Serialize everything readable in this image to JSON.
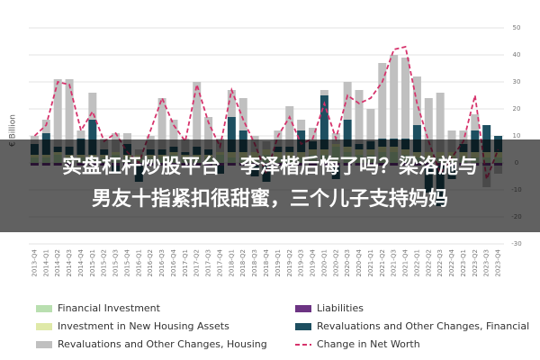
{
  "chart_data": {
    "type": "bar",
    "stacked": true,
    "y_label": "€ Billion",
    "categories": [
      "2013-Q4",
      "2014-Q1",
      "2014-Q2",
      "2014-Q3",
      "2014-Q4",
      "2015-Q1",
      "2015-Q2",
      "2015-Q3",
      "2015-Q4",
      "2016-Q1",
      "2016-Q2",
      "2016-Q3",
      "2016-Q4",
      "2017-Q1",
      "2017-Q2",
      "2017-Q3",
      "2017-Q4",
      "2018-Q1",
      "2018-Q2",
      "2018-Q3",
      "2018-Q4",
      "2019-Q1",
      "2019-Q2",
      "2019-Q3",
      "2019-Q4",
      "2020-Q1",
      "2020-Q2",
      "2020-Q3",
      "2020-Q4",
      "2021-Q1",
      "2021-Q2",
      "2021-Q3",
      "2021-Q4",
      "2022-Q1",
      "2022-Q2",
      "2022-Q3",
      "2022-Q4",
      "2023-Q1",
      "2023-Q2",
      "2023-Q3",
      "2023-Q4"
    ],
    "series": [
      {
        "name": "Financial Investment",
        "type": "bar",
        "color": "#b9dfb0",
        "values": [
          2,
          2,
          3,
          2,
          2,
          2,
          2,
          3,
          2,
          2,
          2,
          2,
          3,
          2,
          2,
          2,
          3,
          2,
          2,
          2,
          3,
          2,
          2,
          2,
          3,
          3,
          6,
          4,
          3,
          3,
          4,
          4,
          3,
          2,
          2,
          2,
          2,
          2,
          2,
          2,
          2
        ]
      },
      {
        "name": "Liabilities",
        "type": "bar",
        "color": "#6c3483",
        "values": [
          -1,
          -1,
          -1,
          -1,
          -1,
          -1,
          -1,
          -1,
          -1,
          -1,
          -1,
          -1,
          -1,
          -1,
          -1,
          -1,
          -1,
          -1,
          -1,
          -1,
          -1,
          -1,
          -1,
          -1,
          -1,
          -1,
          -1,
          -1,
          -1,
          -1,
          -1,
          -1,
          -1,
          -1,
          -1,
          -1,
          -1,
          -1,
          -1,
          -1,
          -1
        ]
      },
      {
        "name": "Investment in New Housing Assets",
        "type": "bar",
        "color": "#dfe9a8",
        "values": [
          1,
          1,
          1,
          1,
          1,
          1,
          1,
          1,
          1,
          1,
          1,
          1,
          1,
          1,
          1,
          1,
          1,
          2,
          2,
          2,
          2,
          2,
          2,
          2,
          2,
          2,
          1,
          2,
          2,
          2,
          2,
          2,
          2,
          2,
          2,
          2,
          2,
          2,
          2,
          2,
          2
        ]
      },
      {
        "name": "Revaluations and Other Changes, Financial",
        "type": "bar",
        "color": "#1d4f60",
        "values": [
          4,
          8,
          2,
          3,
          6,
          13,
          2,
          -3,
          4,
          -6,
          2,
          2,
          2,
          1,
          3,
          2,
          -3,
          13,
          8,
          -4,
          -6,
          2,
          2,
          8,
          3,
          20,
          -5,
          10,
          2,
          3,
          3,
          3,
          4,
          10,
          -10,
          -15,
          -5,
          3,
          8,
          10,
          6
        ]
      },
      {
        "name": "Revaluations and Other Changes, Housing",
        "type": "bar",
        "color": "#c0c0c0",
        "values": [
          3,
          5,
          25,
          25,
          3,
          10,
          4,
          7,
          4,
          2,
          5,
          19,
          10,
          5,
          24,
          12,
          5,
          10,
          12,
          6,
          3,
          6,
          15,
          4,
          5,
          2,
          4,
          14,
          20,
          12,
          28,
          31,
          30,
          18,
          20,
          22,
          8,
          5,
          6,
          -8,
          -3
        ]
      },
      {
        "name": "Change in Net Worth",
        "type": "line",
        "color": "#d6336c",
        "values": [
          10,
          14,
          30,
          29,
          12,
          19,
          8,
          11,
          4,
          0,
          12,
          24,
          14,
          8,
          29,
          15,
          6,
          27,
          16,
          7,
          -4,
          10,
          17,
          7,
          9,
          22,
          9,
          25,
          22,
          24,
          30,
          42,
          43,
          22,
          8,
          -4,
          2,
          8,
          25,
          -6,
          5
        ]
      }
    ],
    "ylim": [
      -30,
      50
    ],
    "yticks": [
      -30,
      -20,
      -10,
      0,
      10,
      20,
      30,
      40,
      50
    ],
    "grid": true
  },
  "overlay": {
    "lines": [
      "实盘杠杆炒股平台　李泽楷后悔了吗？梁洛施与",
      "男友十指紧扣很甜蜜，三个儿子支持妈妈"
    ]
  }
}
